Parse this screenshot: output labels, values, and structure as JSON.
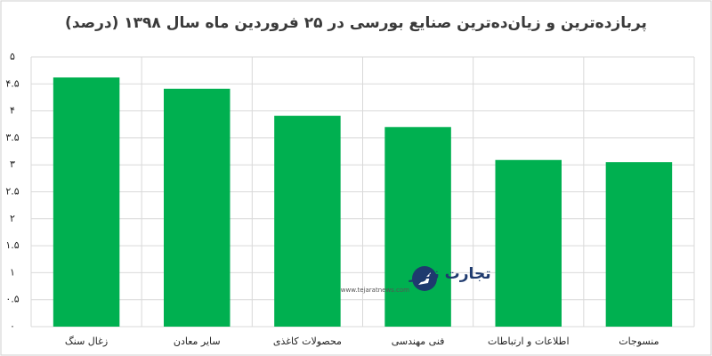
{
  "chart_data": {
    "type": "bar",
    "title": "پربازده‌ترین و زیان‌ده‌ترین صنایع بورسی در ۲۵ فروردین ماه سال ۱۳۹۸ (درصد)",
    "categories": [
      "زغال سنگ",
      "سایر معادن",
      "محصولات کاغذی",
      "فنی مهندسی",
      "اطلاعات و ارتباطات",
      "منسوجات"
    ],
    "values": [
      4.62,
      4.41,
      3.91,
      3.7,
      3.09,
      3.05
    ],
    "color": "#00b050",
    "ylim": [
      0,
      5
    ],
    "yticks": [
      {
        "value": 0,
        "label": "۰"
      },
      {
        "value": 0.5,
        "label": "۰.۵"
      },
      {
        "value": 1,
        "label": "۱"
      },
      {
        "value": 1.5,
        "label": "۱.۵"
      },
      {
        "value": 2,
        "label": "۲"
      },
      {
        "value": 2.5,
        "label": "۲.۵"
      },
      {
        "value": 3,
        "label": "۳"
      },
      {
        "value": 3.5,
        "label": "۳.۵"
      },
      {
        "value": 4,
        "label": "۴"
      },
      {
        "value": 4.5,
        "label": "۴.۵"
      },
      {
        "value": 5,
        "label": "۵"
      }
    ],
    "grid": true,
    "watermark": {
      "name": "تجارت نیوز",
      "url": "www.tejaratnews.com"
    }
  }
}
